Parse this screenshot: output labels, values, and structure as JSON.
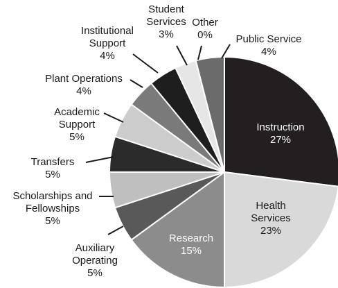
{
  "chart_data": {
    "type": "pie",
    "title": "",
    "slices": [
      {
        "name": "Instruction",
        "value": 27,
        "value_label": "27%",
        "color": "#231f20"
      },
      {
        "name": "Health Services",
        "value": 23,
        "value_label": "23%",
        "color": "#d9d9d9"
      },
      {
        "name": "Research",
        "value": 15,
        "value_label": "15%",
        "color": "#8c8c8c"
      },
      {
        "name": "Auxiliary Operating",
        "value": 5,
        "value_label": "5%",
        "color": "#595959"
      },
      {
        "name": "Scholarships and Fellowships",
        "value": 5,
        "value_label": "5%",
        "color": "#bfbfbf"
      },
      {
        "name": "Transfers",
        "value": 5,
        "value_label": "5%",
        "color": "#2b2b2b"
      },
      {
        "name": "Academic Support",
        "value": 5,
        "value_label": "5%",
        "color": "#cccccc"
      },
      {
        "name": "Plant Operations",
        "value": 4,
        "value_label": "4%",
        "color": "#7a7a7a"
      },
      {
        "name": "Institutional Support",
        "value": 4,
        "value_label": "4%",
        "color": "#1e1e1e"
      },
      {
        "name": "Student Services",
        "value": 3,
        "value_label": "3%",
        "color": "#e6e6e6"
      },
      {
        "name": "Other",
        "value": 0,
        "value_label": "0%",
        "color": "#ffffff"
      },
      {
        "name": "Public Service",
        "value": 4,
        "value_label": "4%",
        "color": "#6b6b6b"
      }
    ]
  }
}
